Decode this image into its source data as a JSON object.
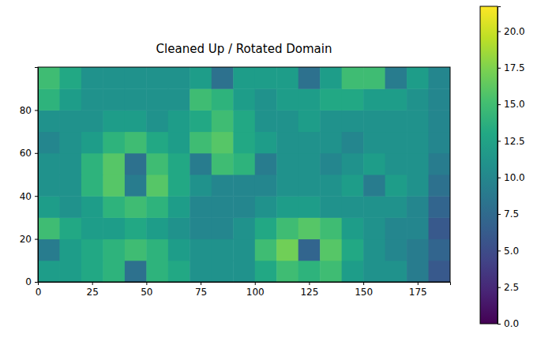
{
  "chart_data": {
    "type": "heatmap",
    "title": "Cleaned Up / Rotated Domain",
    "color": "viridis",
    "xlim": [
      0,
      190
    ],
    "ylim": [
      0,
      100
    ],
    "xticks": [
      0,
      25,
      50,
      75,
      100,
      125,
      150,
      175
    ],
    "yticks": [
      0,
      20,
      40,
      60,
      80
    ],
    "values": [
      [
        12,
        12,
        13,
        14,
        8,
        14,
        13,
        11,
        11,
        11,
        13,
        15,
        14,
        15,
        12,
        11,
        11,
        9,
        6
      ],
      [
        9,
        12,
        13,
        14,
        15,
        14,
        12,
        11,
        11,
        11,
        15,
        17,
        7,
        16,
        13,
        11,
        10,
        9,
        7
      ],
      [
        15,
        13,
        12,
        12,
        13,
        12,
        11,
        10,
        10,
        11,
        13,
        15,
        16,
        15,
        12,
        11,
        10,
        10,
        6
      ],
      [
        12,
        11,
        12,
        14,
        15,
        14,
        12,
        10,
        10,
        10,
        11,
        12,
        12,
        11,
        11,
        11,
        11,
        10,
        7
      ],
      [
        11,
        11,
        14,
        16,
        9,
        16,
        13,
        11,
        10,
        10,
        10,
        11,
        11,
        11,
        12,
        9,
        12,
        11,
        8
      ],
      [
        11,
        11,
        14,
        16,
        8,
        15,
        13,
        9,
        15,
        14,
        9,
        11,
        11,
        10,
        11,
        12,
        11,
        11,
        9
      ],
      [
        10,
        11,
        12,
        14,
        15,
        13,
        12,
        15,
        16,
        13,
        12,
        11,
        11,
        11,
        10,
        11,
        11,
        11,
        10
      ],
      [
        11,
        11,
        11,
        12,
        12,
        11,
        12,
        13,
        15,
        13,
        11,
        11,
        12,
        11,
        11,
        11,
        11,
        11,
        10
      ],
      [
        14,
        12,
        11,
        11,
        11,
        11,
        11,
        15,
        14,
        12,
        11,
        12,
        12,
        13,
        13,
        12,
        12,
        11,
        10
      ],
      [
        15,
        13,
        11,
        11,
        11,
        11,
        11,
        12,
        8,
        12,
        12,
        12,
        8,
        12,
        15,
        15,
        9,
        12,
        10
      ]
    ],
    "colorbar": {
      "range": [
        0,
        21.7
      ],
      "ticks": [
        {
          "value": 0,
          "label": "0.0"
        },
        {
          "value": 2.5,
          "label": "2.5"
        },
        {
          "value": 5,
          "label": "5.0"
        },
        {
          "value": 7.5,
          "label": "7.5"
        },
        {
          "value": 10,
          "label": "10.0"
        },
        {
          "value": 12.5,
          "label": "12.5"
        },
        {
          "value": 15,
          "label": "15.0"
        },
        {
          "value": 17.5,
          "label": "17.5"
        },
        {
          "value": 20,
          "label": "20.0"
        }
      ]
    }
  }
}
